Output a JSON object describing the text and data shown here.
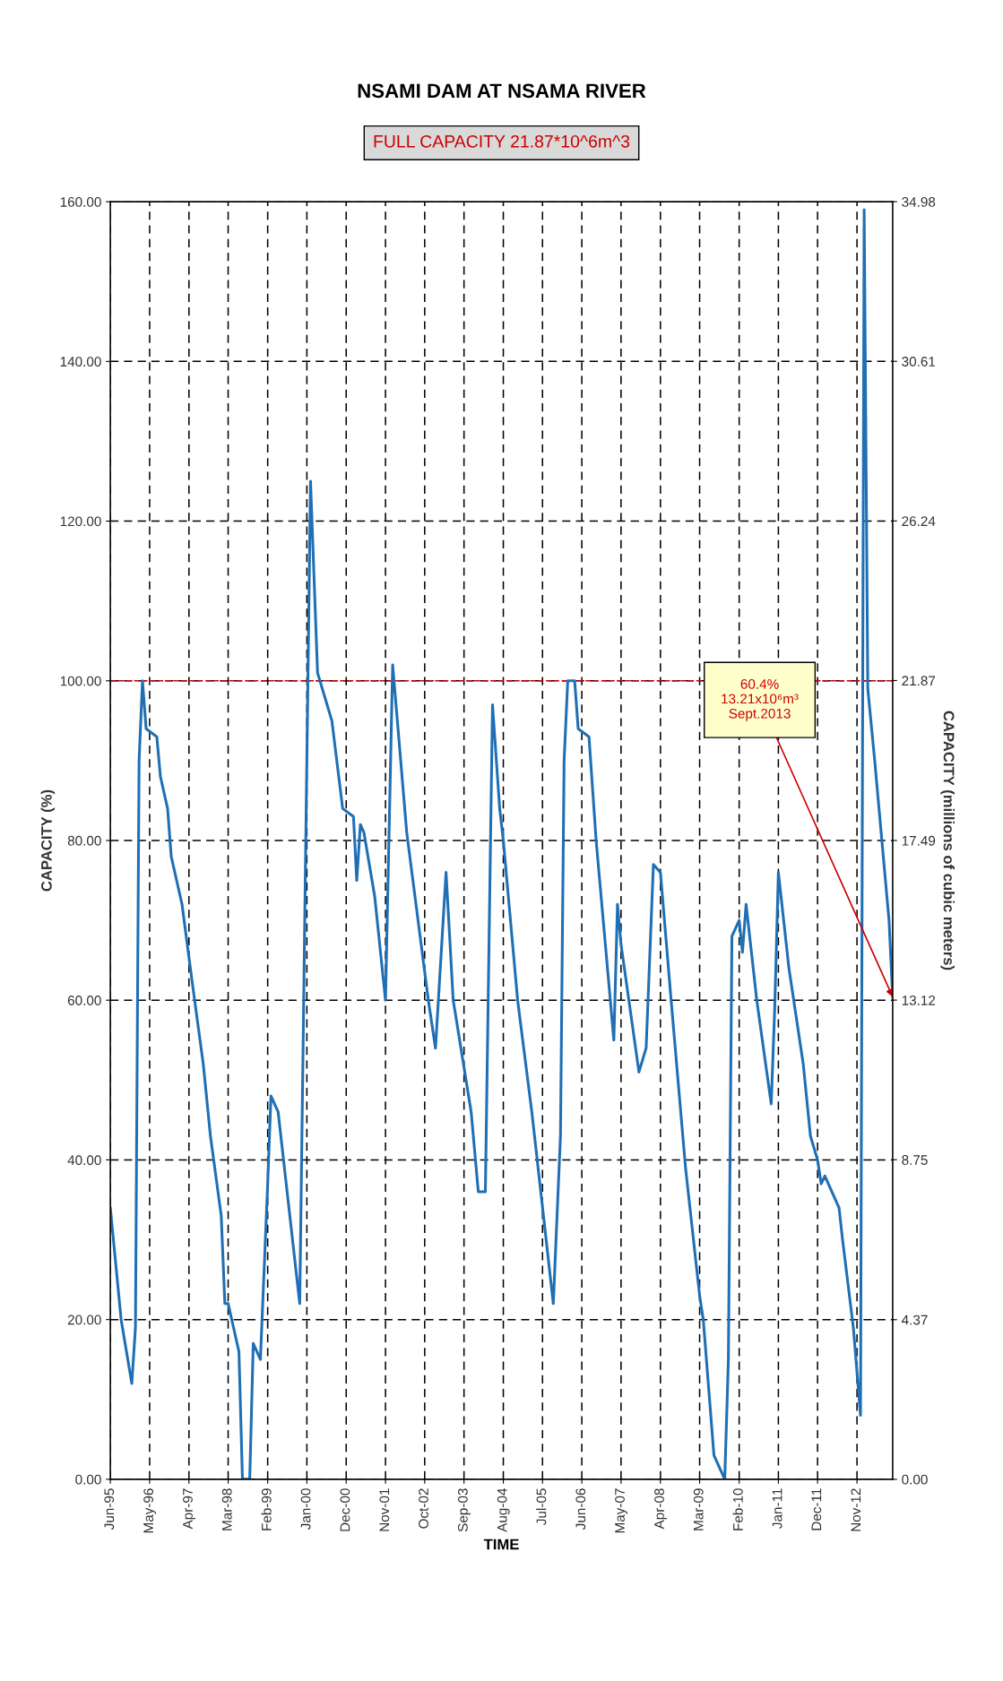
{
  "chart_data": {
    "type": "line",
    "title": "NSAMI DAM AT NSAMA RIVER",
    "subtitle": "FULL CAPACITY 21.87*10^6m^3",
    "xlabel": "TIME",
    "ylabel": "CAPACITY (%)",
    "y2label": "CAPACITY (millions of cubic meters)",
    "x": [
      "1995-06",
      "1995-09",
      "1995-12",
      "1996-01",
      "1996-02",
      "1996-03",
      "1996-04",
      "1996-07",
      "1996-08",
      "1996-10",
      "1996-11",
      "1997-02",
      "1997-05",
      "1997-08",
      "1997-10",
      "1998-01",
      "1998-02",
      "1998-03",
      "1998-06",
      "1998-07",
      "1998-09",
      "1998-10",
      "1998-12",
      "1999-02",
      "1999-03",
      "1999-05",
      "1999-11",
      "2000-02",
      "2000-04",
      "2000-08",
      "2000-11",
      "2001-02",
      "2001-03",
      "2001-04",
      "2001-05",
      "2001-08",
      "2001-11",
      "2002-01",
      "2002-05",
      "2002-11",
      "2003-01",
      "2003-04",
      "2003-06",
      "2003-11",
      "2004-01",
      "2004-03",
      "2004-05",
      "2004-07",
      "2004-08",
      "2004-12",
      "2005-04",
      "2005-10",
      "2005-12",
      "2006-01",
      "2006-02",
      "2006-04",
      "2006-05",
      "2006-08",
      "2006-10",
      "2007-03",
      "2007-04",
      "2007-05",
      "2007-10",
      "2007-12",
      "2008-02",
      "2008-04",
      "2008-07",
      "2008-11",
      "2009-03",
      "2009-04",
      "2009-07",
      "2009-10",
      "2009-11",
      "2009-12",
      "2010-02",
      "2010-03",
      "2010-04",
      "2010-07",
      "2010-11",
      "2010-12",
      "2011-01",
      "2011-04",
      "2011-08",
      "2011-10",
      "2011-12",
      "2012-01",
      "2012-02",
      "2012-06",
      "2012-07",
      "2012-10",
      "2012-12",
      "2013-01",
      "2013-02",
      "2013-04",
      "2013-06",
      "2013-08",
      "2013-09"
    ],
    "series": [
      {
        "color": "#1f6fb5",
        "values": [
          34,
          20,
          12,
          19,
          90,
          100,
          94,
          93,
          88,
          84,
          78,
          72,
          62,
          52,
          43,
          33,
          22,
          22,
          16,
          0,
          0,
          17,
          15,
          37,
          48,
          46,
          22,
          125,
          101,
          95,
          84,
          83,
          75,
          82,
          81,
          73,
          60,
          102,
          81,
          60,
          54,
          76,
          60,
          46,
          36,
          36,
          97,
          84,
          80,
          60,
          46,
          22,
          43,
          90,
          100,
          100,
          94,
          93,
          80,
          55,
          72,
          67,
          51,
          54,
          77,
          76,
          60,
          39,
          23,
          20,
          3,
          0,
          15,
          68,
          70,
          66,
          72,
          60,
          47,
          59,
          76,
          64,
          52,
          43,
          40,
          37,
          38,
          34,
          30,
          19,
          8,
          159,
          99,
          90,
          80,
          70,
          60.4
        ]
      }
    ],
    "xlim": [
      "1995-06",
      "2013-09"
    ],
    "xticks": [
      {
        "value": "1995-06",
        "label": "Jun-95"
      },
      {
        "value": "1996-05",
        "label": "May-96"
      },
      {
        "value": "1997-04",
        "label": "Apr-97"
      },
      {
        "value": "1998-03",
        "label": "Mar-98"
      },
      {
        "value": "1999-02",
        "label": "Feb-99"
      },
      {
        "value": "2000-01",
        "label": "Jan-00"
      },
      {
        "value": "2000-12",
        "label": "Dec-00"
      },
      {
        "value": "2001-11",
        "label": "Nov-01"
      },
      {
        "value": "2002-10",
        "label": "Oct-02"
      },
      {
        "value": "2003-09",
        "label": "Sep-03"
      },
      {
        "value": "2004-08",
        "label": "Aug-04"
      },
      {
        "value": "2005-07",
        "label": "Jul-05"
      },
      {
        "value": "2006-06",
        "label": "Jun-06"
      },
      {
        "value": "2007-05",
        "label": "May-07"
      },
      {
        "value": "2008-04",
        "label": "Apr-08"
      },
      {
        "value": "2009-03",
        "label": "Mar-09"
      },
      {
        "value": "2010-02",
        "label": "Feb-10"
      },
      {
        "value": "2011-01",
        "label": "Jan-11"
      },
      {
        "value": "2011-12",
        "label": "Dec-11"
      },
      {
        "value": "2012-11",
        "label": "Nov-12"
      }
    ],
    "ylim": [
      0,
      160
    ],
    "yticks": [
      {
        "value": 0,
        "label": "0.00"
      },
      {
        "value": 20,
        "label": "20.00"
      },
      {
        "value": 40,
        "label": "40.00"
      },
      {
        "value": 60,
        "label": "60.00"
      },
      {
        "value": 80,
        "label": "80.00"
      },
      {
        "value": 100,
        "label": "100.00"
      },
      {
        "value": 120,
        "label": "120.00"
      },
      {
        "value": 140,
        "label": "140.00"
      },
      {
        "value": 160,
        "label": "160.00"
      }
    ],
    "y2lim": [
      0,
      34.98
    ],
    "y2ticks": [
      {
        "value": 0,
        "label": "0.00"
      },
      4.37,
      8.75,
      13.12,
      17.49,
      21.87,
      26.24,
      30.61,
      34.98
    ],
    "ref_lines": [
      {
        "axis": "y",
        "value": 100,
        "color": "#cc0000",
        "line_style": "dashed"
      }
    ],
    "annotations": [
      {
        "text": "60.4%\n13.21x10⁶m³\nSept.2013",
        "x": "2013-09",
        "y": 60.4
      }
    ],
    "grid": true,
    "marker": "none",
    "line_style": "solid"
  }
}
